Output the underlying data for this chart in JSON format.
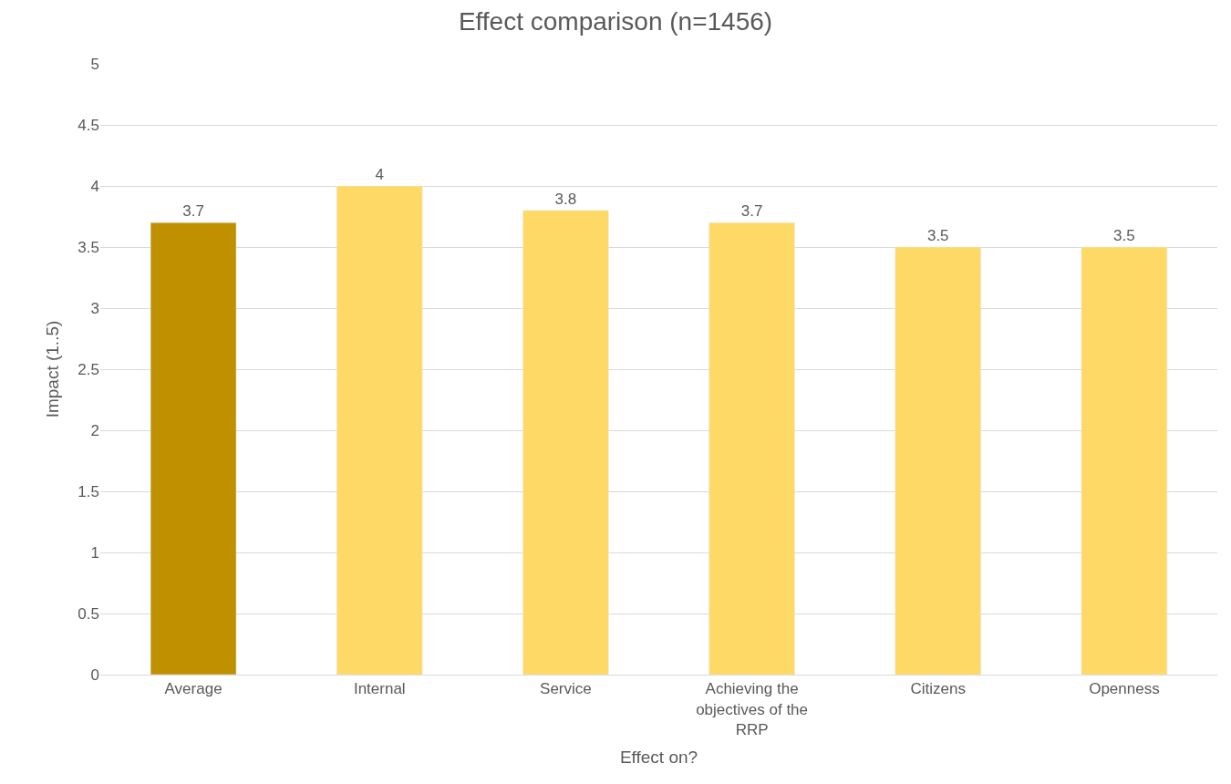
{
  "chart_data": {
    "type": "bar",
    "title": "Effect comparison (n=1456)",
    "xlabel": "Effect on?",
    "ylabel": "Impact (1..5)",
    "categories": [
      "Average",
      "Internal",
      "Service",
      "Achieving the objectives of the RRP",
      "Citizens",
      "Openness"
    ],
    "values": [
      3.7,
      4,
      3.8,
      3.7,
      3.5,
      3.5
    ],
    "colors": [
      "#c09000",
      "#ffd966",
      "#ffd966",
      "#ffd966",
      "#ffd966",
      "#ffd966"
    ],
    "ylim": [
      0,
      5
    ],
    "yticks": [
      0,
      0.5,
      1,
      1.5,
      2,
      2.5,
      3,
      3.5,
      4,
      4.5,
      5
    ],
    "grid": "y",
    "data_labels": true
  }
}
